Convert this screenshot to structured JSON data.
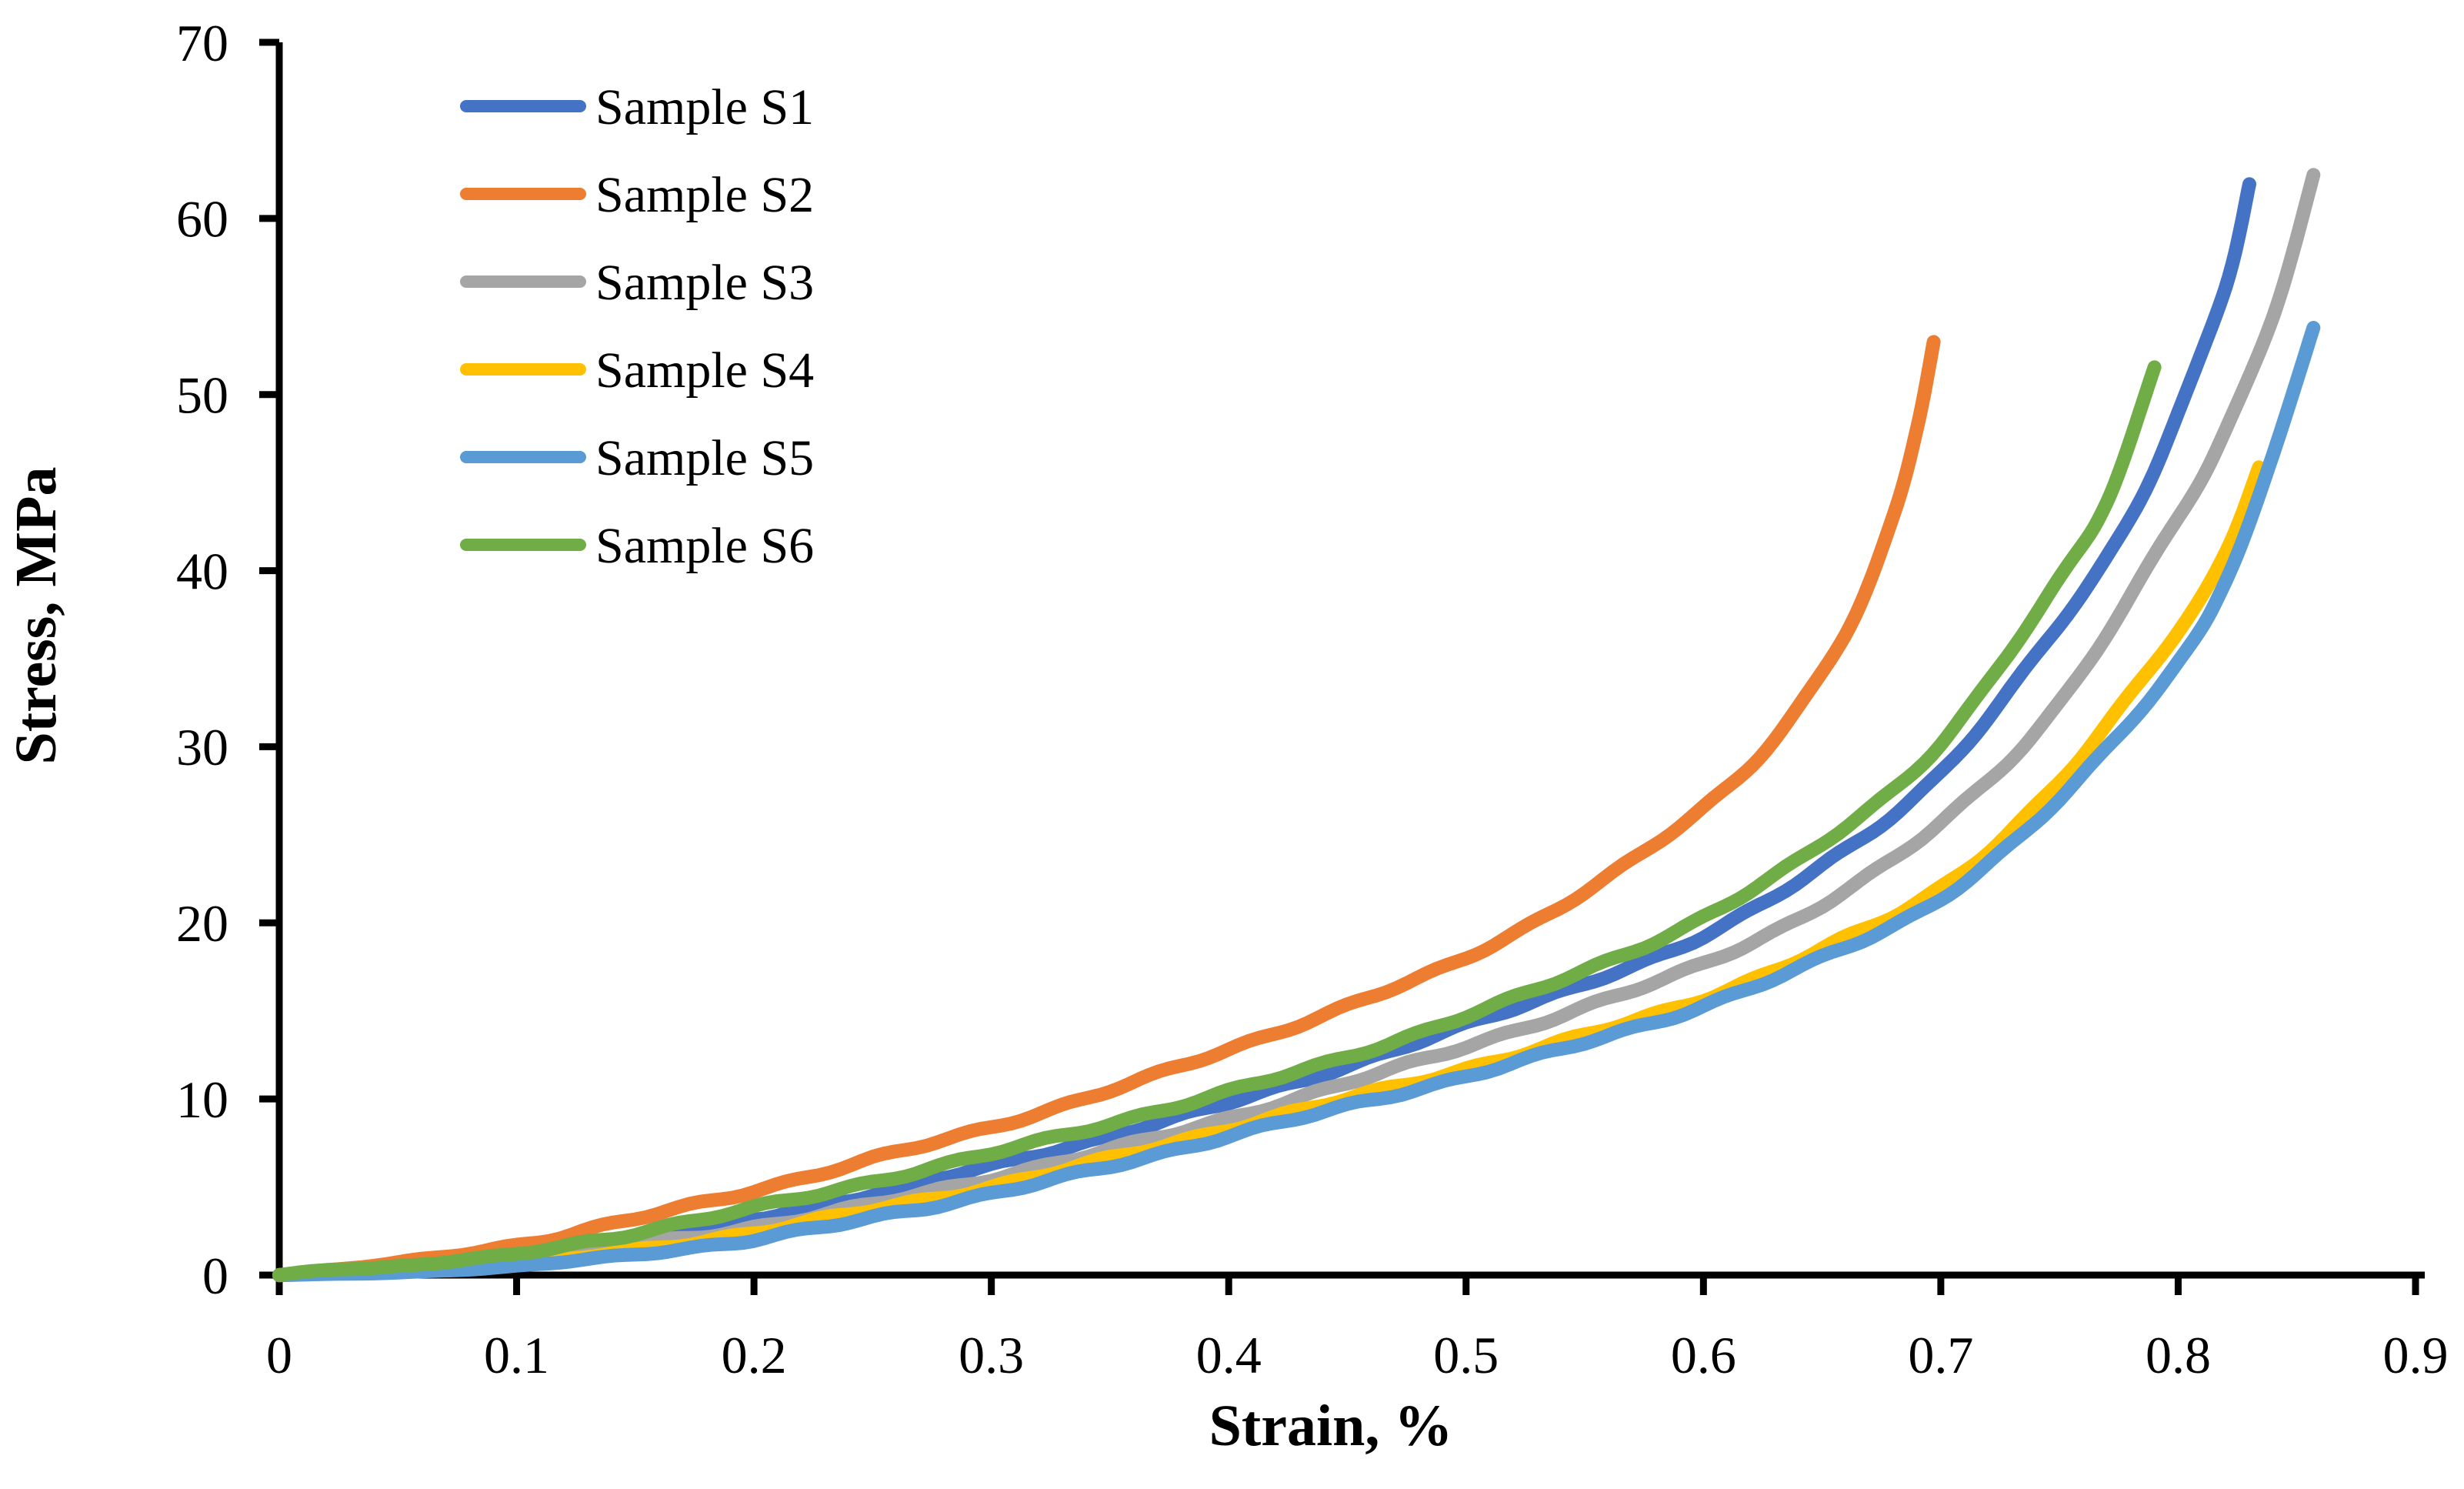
{
  "figure": {
    "background": "#FFFFFF",
    "axis_color": "#000000"
  },
  "chart_data": {
    "type": "line",
    "title": "",
    "xlabel": "Strain, %",
    "ylabel": "Stress, MPa",
    "xlim": [
      0,
      0.9
    ],
    "ylim": [
      0,
      70
    ],
    "grid": false,
    "legend_position": "upper-left-inside",
    "xticks": {
      "values": [
        0,
        0.1,
        0.2,
        0.3,
        0.4,
        0.5,
        0.6,
        0.7,
        0.8,
        0.9
      ],
      "labels": [
        "0",
        "0.1",
        "0.2",
        "0.3",
        "0.4",
        "0.5",
        "0.6",
        "0.7",
        "0.8",
        "0.9"
      ]
    },
    "yticks": {
      "values": [
        0,
        10,
        20,
        30,
        40,
        50,
        60,
        70
      ],
      "labels": [
        "0",
        "10",
        "20",
        "30",
        "40",
        "50",
        "60",
        "70"
      ]
    },
    "series": [
      {
        "name": "Sample S1",
        "color": "#4472C4",
        "points": [
          [
            0,
            0
          ],
          [
            0.05,
            0.4
          ],
          [
            0.1,
            1.0
          ],
          [
            0.15,
            2.0
          ],
          [
            0.2,
            3.2
          ],
          [
            0.25,
            4.6
          ],
          [
            0.3,
            6.2
          ],
          [
            0.35,
            7.9
          ],
          [
            0.4,
            9.8
          ],
          [
            0.45,
            11.9
          ],
          [
            0.5,
            14.2
          ],
          [
            0.55,
            16.6
          ],
          [
            0.6,
            19.2
          ],
          [
            0.65,
            23.3
          ],
          [
            0.7,
            28.5
          ],
          [
            0.75,
            37.0
          ],
          [
            0.78,
            43.0
          ],
          [
            0.8,
            49.0
          ],
          [
            0.82,
            56.0
          ],
          [
            0.83,
            62.0
          ]
        ]
      },
      {
        "name": "Sample S2",
        "color": "#ED7D31",
        "points": [
          [
            0,
            0
          ],
          [
            0.05,
            0.7
          ],
          [
            0.1,
            1.7
          ],
          [
            0.15,
            3.2
          ],
          [
            0.2,
            4.8
          ],
          [
            0.25,
            6.6
          ],
          [
            0.3,
            8.4
          ],
          [
            0.35,
            10.5
          ],
          [
            0.4,
            12.8
          ],
          [
            0.45,
            15.3
          ],
          [
            0.5,
            18.0
          ],
          [
            0.55,
            21.8
          ],
          [
            0.6,
            26.5
          ],
          [
            0.63,
            30.5
          ],
          [
            0.66,
            36.5
          ],
          [
            0.68,
            43.0
          ],
          [
            0.69,
            48.0
          ],
          [
            0.697,
            53.0
          ]
        ]
      },
      {
        "name": "Sample S3",
        "color": "#A5A5A5",
        "points": [
          [
            0,
            0
          ],
          [
            0.05,
            0.3
          ],
          [
            0.1,
            0.8
          ],
          [
            0.15,
            1.7
          ],
          [
            0.2,
            2.7
          ],
          [
            0.25,
            4.0
          ],
          [
            0.3,
            5.5
          ],
          [
            0.35,
            7.1
          ],
          [
            0.4,
            8.9
          ],
          [
            0.45,
            10.9
          ],
          [
            0.5,
            13.0
          ],
          [
            0.55,
            15.2
          ],
          [
            0.6,
            17.7
          ],
          [
            0.65,
            21.0
          ],
          [
            0.7,
            25.7
          ],
          [
            0.75,
            32.5
          ],
          [
            0.8,
            43.0
          ],
          [
            0.82,
            48.0
          ],
          [
            0.84,
            54.5
          ],
          [
            0.857,
            62.5
          ]
        ]
      },
      {
        "name": "Sample S4",
        "color": "#FFC000",
        "points": [
          [
            0,
            0
          ],
          [
            0.05,
            0.2
          ],
          [
            0.1,
            0.6
          ],
          [
            0.15,
            1.4
          ],
          [
            0.2,
            2.4
          ],
          [
            0.25,
            3.7
          ],
          [
            0.3,
            5.0
          ],
          [
            0.35,
            6.6
          ],
          [
            0.4,
            8.3
          ],
          [
            0.45,
            10.0
          ],
          [
            0.5,
            11.7
          ],
          [
            0.55,
            13.6
          ],
          [
            0.6,
            15.7
          ],
          [
            0.65,
            18.5
          ],
          [
            0.7,
            22.0
          ],
          [
            0.75,
            28.0
          ],
          [
            0.8,
            36.6
          ],
          [
            0.82,
            41.0
          ],
          [
            0.834,
            46.0
          ]
        ]
      },
      {
        "name": "Sample S5",
        "color": "#5B9BD5",
        "points": [
          [
            0,
            0
          ],
          [
            0.05,
            0.15
          ],
          [
            0.1,
            0.5
          ],
          [
            0.15,
            1.2
          ],
          [
            0.2,
            2.0
          ],
          [
            0.25,
            3.3
          ],
          [
            0.3,
            4.6
          ],
          [
            0.35,
            6.2
          ],
          [
            0.4,
            7.9
          ],
          [
            0.45,
            9.6
          ],
          [
            0.5,
            11.3
          ],
          [
            0.55,
            13.2
          ],
          [
            0.6,
            15.3
          ],
          [
            0.65,
            18.0
          ],
          [
            0.7,
            21.4
          ],
          [
            0.75,
            27.0
          ],
          [
            0.8,
            34.8
          ],
          [
            0.82,
            39.5
          ],
          [
            0.84,
            46.5
          ],
          [
            0.857,
            53.8
          ]
        ]
      },
      {
        "name": "Sample S6",
        "color": "#70AD47",
        "points": [
          [
            0,
            0
          ],
          [
            0.02,
            0.3
          ],
          [
            0.05,
            0.5
          ],
          [
            0.1,
            1.2
          ],
          [
            0.15,
            2.4
          ],
          [
            0.2,
            3.8
          ],
          [
            0.25,
            5.3
          ],
          [
            0.3,
            6.9
          ],
          [
            0.35,
            8.6
          ],
          [
            0.4,
            10.4
          ],
          [
            0.45,
            12.4
          ],
          [
            0.5,
            14.7
          ],
          [
            0.55,
            17.3
          ],
          [
            0.6,
            20.3
          ],
          [
            0.65,
            24.5
          ],
          [
            0.7,
            30.2
          ],
          [
            0.75,
            39.5
          ],
          [
            0.77,
            44.0
          ],
          [
            0.79,
            51.5
          ]
        ]
      }
    ]
  }
}
